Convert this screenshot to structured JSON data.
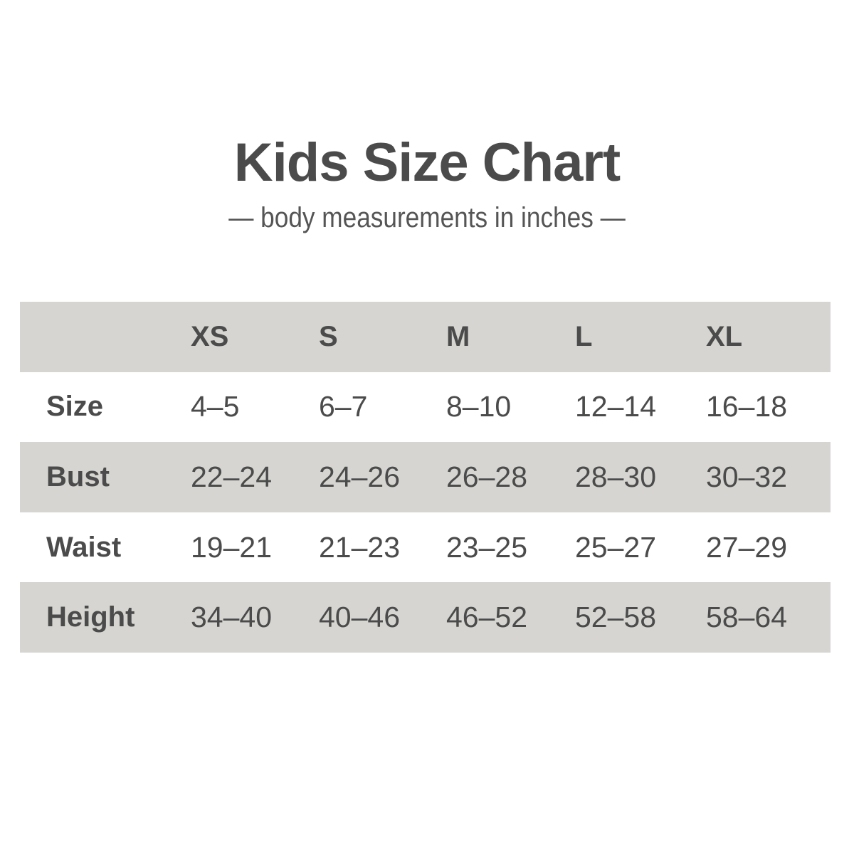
{
  "title": "Kids Size Chart",
  "subtitle": "— body measurements in inches —",
  "colors": {
    "text": "#4a4b4a",
    "band": "#d6d5d1",
    "background": "#ffffff"
  },
  "table": {
    "columns": [
      "XS",
      "S",
      "M",
      "L",
      "XL"
    ],
    "rows": [
      {
        "label": "Size",
        "values": [
          "4–5",
          "6–7",
          "8–10",
          "12–14",
          "16–18"
        ]
      },
      {
        "label": "Bust",
        "values": [
          "22–24",
          "24–26",
          "26–28",
          "28–30",
          "30–32"
        ]
      },
      {
        "label": "Waist",
        "values": [
          "19–21",
          "21–23",
          "23–25",
          "25–27",
          "27–29"
        ]
      },
      {
        "label": "Height",
        "values": [
          "34–40",
          "40–46",
          "46–52",
          "52–58",
          "58–64"
        ]
      }
    ]
  }
}
